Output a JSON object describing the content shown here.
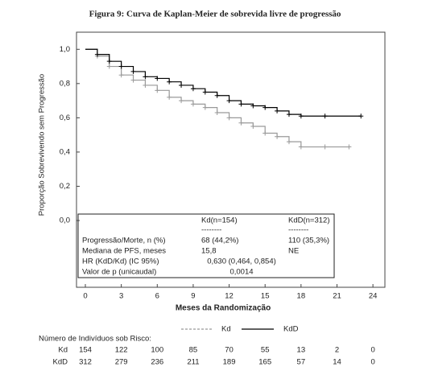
{
  "chart_data": {
    "type": "step",
    "title": "Figura 9: Curva de Kaplan-Meier de sobrevida livre de progressão",
    "x_label": "Meses da Randomização",
    "y_label": "Proporção Sobrevivendo sem Progressão",
    "xlim": [
      -0.74,
      25
    ],
    "ylim": [
      -0.39,
      1.1
    ],
    "xticks": [
      0,
      3,
      6,
      9,
      12,
      15,
      18,
      21,
      24
    ],
    "yticks": [
      {
        "value": 0,
        "label": "0,0"
      },
      {
        "value": 0.2,
        "label": "0,2"
      },
      {
        "value": 0.4,
        "label": "0,4"
      },
      {
        "value": 0.6,
        "label": "0,6"
      },
      {
        "value": 0.8,
        "label": "0,8"
      },
      {
        "value": 1,
        "label": "1,0"
      }
    ],
    "series": [
      {
        "name": "Kd",
        "color": "#999999",
        "line_style": "dashed",
        "x": [
          0,
          1,
          2,
          3,
          4,
          5,
          6,
          7,
          8,
          9,
          10,
          11,
          12,
          13,
          14,
          15,
          16,
          17,
          18,
          20,
          22
        ],
        "values": [
          1.0,
          0.96,
          0.9,
          0.85,
          0.82,
          0.79,
          0.76,
          0.72,
          0.7,
          0.68,
          0.66,
          0.63,
          0.6,
          0.57,
          0.55,
          0.51,
          0.49,
          0.46,
          0.43,
          0.43,
          0.43
        ]
      },
      {
        "name": "KdD",
        "color": "#000000",
        "line_style": "solid",
        "x": [
          0,
          1,
          2,
          3,
          4,
          5,
          6,
          7,
          8,
          9,
          10,
          11,
          12,
          13,
          14,
          15,
          16,
          17,
          18,
          20,
          23
        ],
        "values": [
          1.0,
          0.97,
          0.93,
          0.9,
          0.87,
          0.84,
          0.83,
          0.81,
          0.79,
          0.77,
          0.75,
          0.73,
          0.7,
          0.68,
          0.67,
          0.66,
          0.64,
          0.62,
          0.61,
          0.61,
          0.61
        ]
      }
    ],
    "summary_table": {
      "headers": [
        "Kd(n=154)",
        "KdD(n=312)"
      ],
      "separators": [
        "--------",
        "--------"
      ],
      "rows": [
        [
          "Progressão/Morte, n (%)",
          "68 (44,2%)",
          "110 (35,3%)"
        ],
        [
          "Mediana de PFS, meses",
          "15,8",
          "NE"
        ],
        [
          "HR (KdD/Kd) (IC 95%)",
          "0,630 (0,464, 0,854)"
        ],
        [
          "Valor de p (unicaudal)",
          "0,0014"
        ]
      ]
    },
    "at_risk": {
      "title": "Número de Indivíduos sob Risco:",
      "rows": [
        {
          "label": "Kd",
          "values": [
            154,
            122,
            100,
            85,
            70,
            55,
            13,
            2,
            0
          ]
        },
        {
          "label": "KdD",
          "values": [
            312,
            279,
            236,
            211,
            189,
            165,
            57,
            14,
            0
          ]
        }
      ]
    }
  }
}
